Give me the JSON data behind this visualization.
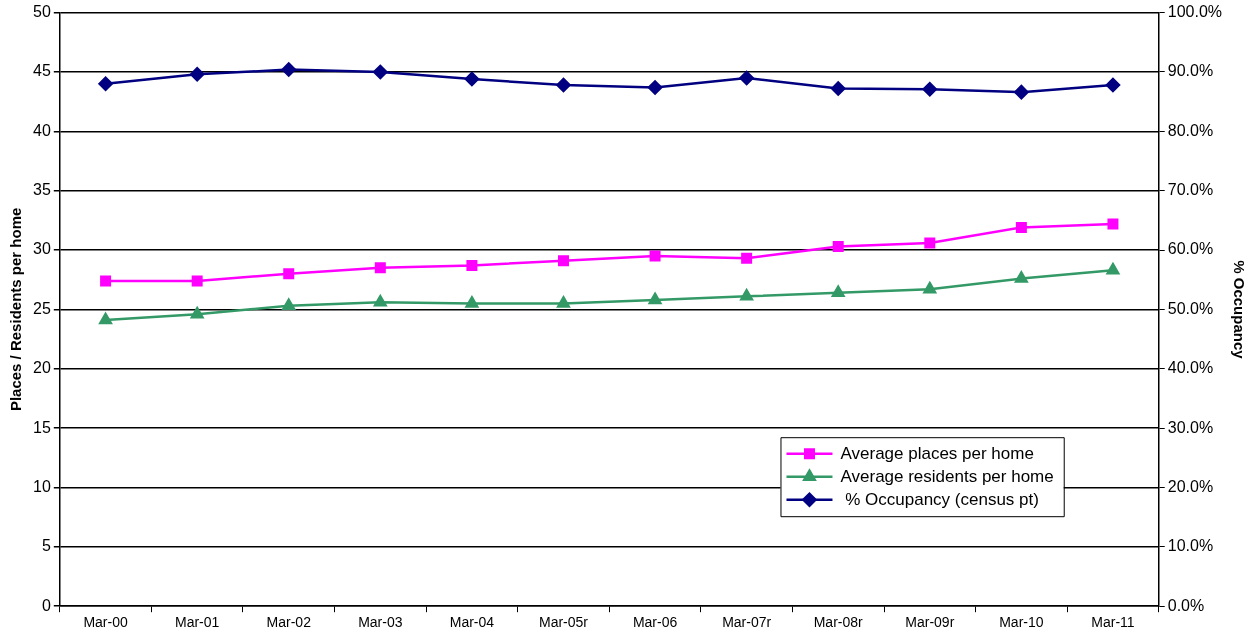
{
  "chart_data": {
    "type": "line",
    "ylabel": "Places / Residents per home",
    "y2label": "% Occupancy",
    "categories": [
      "Mar-00",
      "Mar-01",
      "Mar-02",
      "Mar-03",
      "Mar-04",
      "Mar-05r",
      "Mar-06",
      "Mar-07r",
      "Mar-08r",
      "Mar-09r",
      "Mar-10",
      "Mar-11"
    ],
    "series": [
      {
        "name": "Average places per home",
        "color": "#ff00ff",
        "marker": "square",
        "values": [
          27.4,
          27.4,
          28.0,
          28.5,
          28.7,
          29.1,
          29.5,
          29.3,
          30.3,
          30.6,
          31.9,
          32.2
        ]
      },
      {
        "name": "Average residents per home",
        "color": "#339966",
        "marker": "triangle",
        "values": [
          24.1,
          24.6,
          25.3,
          25.6,
          25.5,
          25.5,
          25.8,
          26.1,
          26.4,
          26.7,
          27.6,
          28.3
        ]
      },
      {
        "name": " % Occupancy (census pt)",
        "color": "#000080",
        "marker": "diamond",
        "axis": "y2",
        "values": [
          88.0,
          89.6,
          90.4,
          90.0,
          88.8,
          87.8,
          87.4,
          89.0,
          87.2,
          87.1,
          86.6,
          87.8
        ]
      }
    ],
    "ylim": [
      0,
      50
    ],
    "yticks": [
      0,
      5,
      10,
      15,
      20,
      25,
      30,
      35,
      40,
      45,
      50
    ],
    "y2lim": [
      0,
      100
    ],
    "y2ticks": [
      {
        "value": 0,
        "label": "0.0%"
      },
      {
        "value": 10,
        "label": "10.0%"
      },
      {
        "value": 20,
        "label": "20.0%"
      },
      {
        "value": 30,
        "label": "30.0%"
      },
      {
        "value": 40,
        "label": "40.0%"
      },
      {
        "value": 50,
        "label": "50.0%"
      },
      {
        "value": 60,
        "label": "60.0%"
      },
      {
        "value": 70,
        "label": "70.0%"
      },
      {
        "value": 80,
        "label": "80.0%"
      },
      {
        "value": 90,
        "label": "90.0%"
      },
      {
        "value": 100,
        "label": "100.0%"
      }
    ],
    "grid": "y",
    "legend": "bottom right",
    "line_style": "solid"
  }
}
